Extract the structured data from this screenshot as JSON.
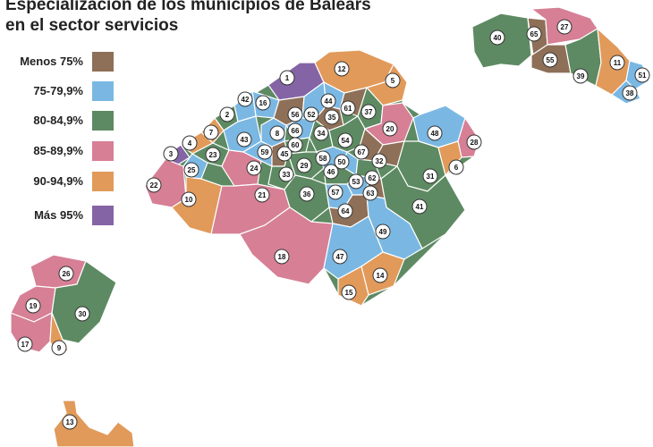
{
  "title_line1": "Especialización de los municipios de Balears",
  "title_line2": "en el sector servicios",
  "colors": {
    "brown": "#8e6f57",
    "blue": "#7ab8e3",
    "green": "#5d8a62",
    "pink": "#d67f95",
    "orange": "#e19a5a",
    "purple": "#8564a6"
  },
  "legend": [
    {
      "label": "Menos 75%",
      "color": "#8e6f57"
    },
    {
      "label": "75-79,9%",
      "color": "#7ab8e3"
    },
    {
      "label": "80-84,9%",
      "color": "#5d8a62"
    },
    {
      "label": "85-89,9%",
      "color": "#d67f95"
    },
    {
      "label": "90-94,9%",
      "color": "#e19a5a"
    },
    {
      "label": "Más 95%",
      "color": "#8564a6"
    }
  ],
  "municipalities": [
    {
      "n": "1",
      "cat": "purple"
    },
    {
      "n": "2",
      "cat": "green"
    },
    {
      "n": "3",
      "cat": "purple"
    },
    {
      "n": "4",
      "cat": "orange"
    },
    {
      "n": "5",
      "cat": "orange"
    },
    {
      "n": "6",
      "cat": "orange"
    },
    {
      "n": "7",
      "cat": "orange"
    },
    {
      "n": "8",
      "cat": "blue"
    },
    {
      "n": "9",
      "cat": "orange"
    },
    {
      "n": "10",
      "cat": "orange"
    },
    {
      "n": "11",
      "cat": "orange"
    },
    {
      "n": "12",
      "cat": "orange"
    },
    {
      "n": "13",
      "cat": "orange"
    },
    {
      "n": "14",
      "cat": "orange"
    },
    {
      "n": "15",
      "cat": "orange"
    },
    {
      "n": "16",
      "cat": "blue"
    },
    {
      "n": "17",
      "cat": "pink"
    },
    {
      "n": "18",
      "cat": "pink"
    },
    {
      "n": "19",
      "cat": "pink"
    },
    {
      "n": "20",
      "cat": "pink"
    },
    {
      "n": "21",
      "cat": "pink"
    },
    {
      "n": "22",
      "cat": "pink"
    },
    {
      "n": "23",
      "cat": "green"
    },
    {
      "n": "24",
      "cat": "pink"
    },
    {
      "n": "25",
      "cat": "blue"
    },
    {
      "n": "26",
      "cat": "pink"
    },
    {
      "n": "27",
      "cat": "pink"
    },
    {
      "n": "28",
      "cat": "pink"
    },
    {
      "n": "29",
      "cat": "green"
    },
    {
      "n": "30",
      "cat": "green"
    },
    {
      "n": "31",
      "cat": "green"
    },
    {
      "n": "32",
      "cat": "brown"
    },
    {
      "n": "33",
      "cat": "green"
    },
    {
      "n": "34",
      "cat": "green"
    },
    {
      "n": "35",
      "cat": "brown"
    },
    {
      "n": "36",
      "cat": "green"
    },
    {
      "n": "37",
      "cat": "green"
    },
    {
      "n": "38",
      "cat": "blue"
    },
    {
      "n": "39",
      "cat": "green"
    },
    {
      "n": "40",
      "cat": "green"
    },
    {
      "n": "41",
      "cat": "green"
    },
    {
      "n": "42",
      "cat": "blue"
    },
    {
      "n": "43",
      "cat": "blue"
    },
    {
      "n": "44",
      "cat": "blue"
    },
    {
      "n": "45",
      "cat": "brown"
    },
    {
      "n": "46",
      "cat": "green"
    },
    {
      "n": "47",
      "cat": "blue"
    },
    {
      "n": "48",
      "cat": "blue"
    },
    {
      "n": "49",
      "cat": "blue"
    },
    {
      "n": "50",
      "cat": "blue"
    },
    {
      "n": "51",
      "cat": "blue"
    },
    {
      "n": "52",
      "cat": "blue"
    },
    {
      "n": "53",
      "cat": "blue"
    },
    {
      "n": "54",
      "cat": "green"
    },
    {
      "n": "55",
      "cat": "brown"
    },
    {
      "n": "56",
      "cat": "brown"
    },
    {
      "n": "57",
      "cat": "blue"
    },
    {
      "n": "58",
      "cat": "blue"
    },
    {
      "n": "59",
      "cat": "blue"
    },
    {
      "n": "60",
      "cat": "green"
    },
    {
      "n": "61",
      "cat": "brown"
    },
    {
      "n": "62",
      "cat": "green"
    },
    {
      "n": "63",
      "cat": "brown"
    },
    {
      "n": "64",
      "cat": "brown"
    },
    {
      "n": "65",
      "cat": "brown"
    },
    {
      "n": "66",
      "cat": "blue"
    },
    {
      "n": "67",
      "cat": "brown"
    }
  ]
}
